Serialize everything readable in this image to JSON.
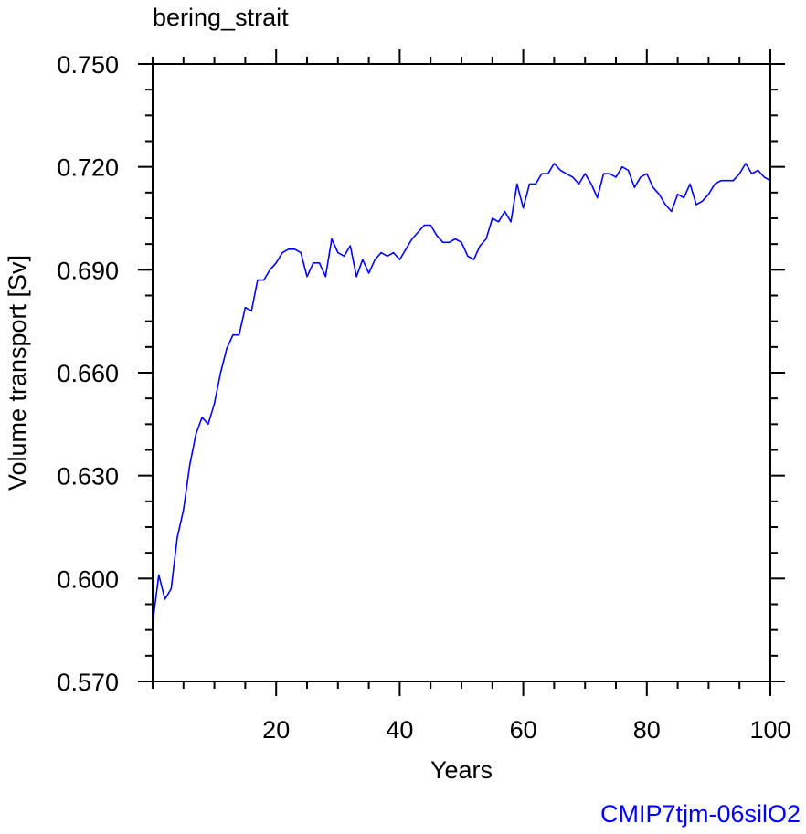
{
  "chart_data": {
    "type": "line",
    "title": "bering_strait",
    "xlabel": "Years",
    "ylabel": "Volume transport [Sv]",
    "footer": "CMIP7tjm-06silO2",
    "xlim": [
      0,
      100
    ],
    "ylim": [
      0.57,
      0.75
    ],
    "xticks": [
      20,
      40,
      60,
      80,
      100
    ],
    "xtick_labels": [
      "20",
      "40",
      "60",
      "80",
      "100"
    ],
    "yticks": [
      0.57,
      0.6,
      0.63,
      0.66,
      0.69,
      0.72,
      0.75
    ],
    "ytick_labels": [
      "0.570",
      "0.600",
      "0.630",
      "0.660",
      "0.690",
      "0.720",
      "0.750"
    ],
    "grid": false,
    "series": [
      {
        "color": "#0000ff",
        "x": [
          0,
          1,
          2,
          3,
          4,
          5,
          6,
          7,
          8,
          9,
          10,
          11,
          12,
          13,
          14,
          15,
          16,
          17,
          18,
          19,
          20,
          21,
          22,
          23,
          24,
          25,
          26,
          27,
          28,
          29,
          30,
          31,
          32,
          33,
          34,
          35,
          36,
          37,
          38,
          39,
          40,
          41,
          42,
          43,
          44,
          45,
          46,
          47,
          48,
          49,
          50,
          51,
          52,
          53,
          54,
          55,
          56,
          57,
          58,
          59,
          60,
          61,
          62,
          63,
          64,
          65,
          66,
          67,
          68,
          69,
          70,
          71,
          72,
          73,
          74,
          75,
          76,
          77,
          78,
          79,
          80,
          81,
          82,
          83,
          84,
          85,
          86,
          87,
          88,
          89,
          90,
          91,
          92,
          93,
          94,
          95,
          96,
          97,
          98,
          99,
          100
        ],
        "y": [
          0.587,
          0.601,
          0.594,
          0.597,
          0.612,
          0.62,
          0.633,
          0.642,
          0.647,
          0.645,
          0.651,
          0.66,
          0.667,
          0.671,
          0.671,
          0.679,
          0.678,
          0.687,
          0.687,
          0.69,
          0.692,
          0.695,
          0.696,
          0.696,
          0.695,
          0.688,
          0.692,
          0.692,
          0.688,
          0.699,
          0.695,
          0.694,
          0.697,
          0.688,
          0.693,
          0.689,
          0.693,
          0.695,
          0.694,
          0.695,
          0.693,
          0.696,
          0.699,
          0.701,
          0.703,
          0.703,
          0.7,
          0.698,
          0.698,
          0.699,
          0.698,
          0.694,
          0.693,
          0.697,
          0.699,
          0.705,
          0.704,
          0.707,
          0.704,
          0.715,
          0.708,
          0.715,
          0.715,
          0.718,
          0.718,
          0.721,
          0.719,
          0.718,
          0.717,
          0.715,
          0.718,
          0.715,
          0.711,
          0.718,
          0.718,
          0.717,
          0.72,
          0.719,
          0.714,
          0.717,
          0.718,
          0.714,
          0.712,
          0.709,
          0.707,
          0.712,
          0.711,
          0.715,
          0.709,
          0.71,
          0.712,
          0.715,
          0.716,
          0.716,
          0.716,
          0.718,
          0.721,
          0.718,
          0.719,
          0.717,
          0.716
        ]
      }
    ]
  }
}
